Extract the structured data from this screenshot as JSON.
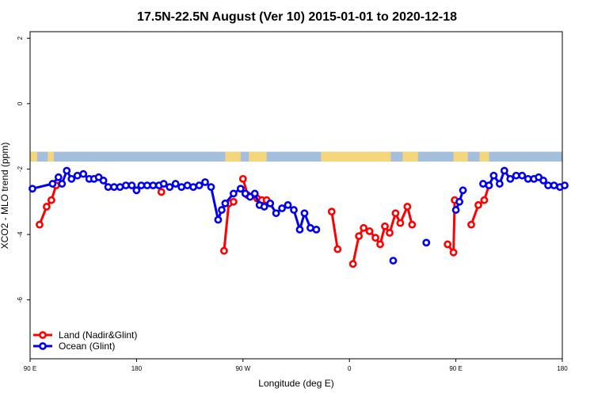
{
  "chart_data": {
    "type": "line",
    "title": "17.5N-22.5N August (Ver 10)   2015-01-01 to 2020-12-18",
    "xlabel": "Longitude (deg E)",
    "ylabel": "XCO2 - MLO trend (ppm)",
    "x_ticks": [
      {
        "value": 90,
        "label": "90 E"
      },
      {
        "value": 180,
        "label": "180"
      },
      {
        "value": 270,
        "label": "90 W"
      },
      {
        "value": 360,
        "label": "0"
      },
      {
        "value": 450,
        "label": "90 E"
      },
      {
        "value": 540,
        "label": "180"
      }
    ],
    "y_ticks": [
      2,
      0,
      -2,
      -4,
      -6
    ],
    "xlim": [
      90,
      540
    ],
    "ylim": [
      -7.8,
      2.2
    ],
    "grid": false,
    "legend_position": "bottom-left",
    "land_sea_strip": {
      "y_range": [
        -1.77,
        -1.47
      ],
      "ocean_color": "#a4bede",
      "land_color": "#f6d67a",
      "land_segments": [
        [
          90,
          96
        ],
        [
          105,
          110
        ],
        [
          255,
          268
        ],
        [
          275,
          290
        ],
        [
          336,
          395
        ],
        [
          405,
          418
        ],
        [
          448,
          460
        ],
        [
          470,
          478
        ]
      ]
    },
    "series": [
      {
        "name": "Land (Nadir&Glint)",
        "color": "#ff0000",
        "segments": [
          [
            [
              98,
              -3.7
            ],
            [
              104,
              -3.15
            ],
            [
              108,
              -2.95
            ],
            [
              112,
              -2.5
            ]
          ],
          [
            [
              201,
              -2.7
            ]
          ],
          [
            [
              254,
              -4.5
            ],
            [
              258,
              -3.05
            ],
            [
              262,
              -3.0
            ]
          ],
          [
            [
              270,
              -2.3
            ],
            [
              274,
              -2.8
            ],
            [
              282,
              -2.9
            ],
            [
              286,
              -2.95
            ],
            [
              290,
              -2.95
            ]
          ],
          [
            [
              345,
              -3.3
            ],
            [
              350,
              -4.45
            ]
          ],
          [
            [
              363,
              -4.9
            ],
            [
              368,
              -4.05
            ],
            [
              372,
              -3.8
            ],
            [
              377,
              -3.9
            ],
            [
              382,
              -4.1
            ],
            [
              386,
              -4.3
            ],
            [
              390,
              -3.75
            ],
            [
              394,
              -3.95
            ],
            [
              399,
              -3.35
            ],
            [
              403,
              -3.65
            ],
            [
              409,
              -3.15
            ],
            [
              413,
              -3.7
            ]
          ],
          [
            [
              443,
              -4.3
            ],
            [
              448,
              -4.55
            ],
            [
              449,
              -2.95
            ]
          ],
          [
            [
              463,
              -3.7
            ],
            [
              469,
              -3.1
            ],
            [
              474,
              -2.95
            ],
            [
              478,
              -2.5
            ]
          ]
        ]
      },
      {
        "name": "Ocean (Glint)",
        "color": "#0000ee",
        "segments": [
          [
            [
              92,
              -2.6
            ],
            [
              109,
              -2.45
            ],
            [
              114,
              -2.25
            ],
            [
              117,
              -2.45
            ],
            [
              121,
              -2.05
            ],
            [
              125,
              -2.3
            ],
            [
              130,
              -2.2
            ],
            [
              135,
              -2.15
            ],
            [
              140,
              -2.3
            ],
            [
              144,
              -2.3
            ],
            [
              148,
              -2.25
            ],
            [
              152,
              -2.35
            ],
            [
              156,
              -2.55
            ],
            [
              161,
              -2.55
            ],
            [
              166,
              -2.55
            ],
            [
              171,
              -2.5
            ],
            [
              176,
              -2.5
            ],
            [
              180,
              -2.65
            ],
            [
              184,
              -2.5
            ],
            [
              189,
              -2.5
            ],
            [
              194,
              -2.5
            ],
            [
              199,
              -2.5
            ],
            [
              203,
              -2.45
            ],
            [
              208,
              -2.55
            ],
            [
              213,
              -2.45
            ],
            [
              218,
              -2.55
            ],
            [
              223,
              -2.5
            ],
            [
              228,
              -2.55
            ],
            [
              233,
              -2.5
            ],
            [
              238,
              -2.4
            ],
            [
              243,
              -2.55
            ],
            [
              249,
              -3.55
            ],
            [
              252,
              -3.25
            ],
            [
              255,
              -3.05
            ],
            [
              262,
              -2.75
            ],
            [
              268,
              -2.6
            ],
            [
              272,
              -2.75
            ],
            [
              276,
              -2.85
            ],
            [
              280,
              -2.75
            ],
            [
              284,
              -3.1
            ],
            [
              288,
              -3.15
            ],
            [
              293,
              -3.05
            ],
            [
              298,
              -3.35
            ],
            [
              303,
              -3.2
            ],
            [
              308,
              -3.1
            ],
            [
              313,
              -3.25
            ],
            [
              318,
              -3.85
            ],
            [
              322,
              -3.35
            ],
            [
              327,
              -3.8
            ],
            [
              332,
              -3.85
            ]
          ],
          [
            [
              397,
              -4.8
            ]
          ],
          [
            [
              425,
              -4.25
            ]
          ],
          [
            [
              450,
              -3.25
            ],
            [
              453,
              -3.0
            ],
            [
              456,
              -2.65
            ]
          ],
          [
            [
              473,
              -2.45
            ],
            [
              478,
              -2.5
            ],
            [
              482,
              -2.2
            ],
            [
              487,
              -2.45
            ],
            [
              491,
              -2.05
            ],
            [
              496,
              -2.3
            ],
            [
              501,
              -2.2
            ],
            [
              506,
              -2.2
            ],
            [
              511,
              -2.3
            ],
            [
              516,
              -2.3
            ],
            [
              520,
              -2.25
            ],
            [
              524,
              -2.35
            ],
            [
              528,
              -2.5
            ],
            [
              533,
              -2.5
            ],
            [
              538,
              -2.55
            ],
            [
              542,
              -2.5
            ]
          ]
        ]
      }
    ]
  }
}
